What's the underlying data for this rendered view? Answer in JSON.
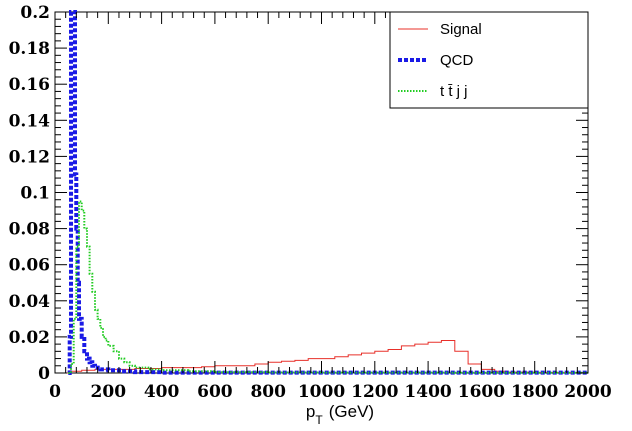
{
  "chart_data": {
    "type": "line",
    "xlabel": "p",
    "xlabel_sub": "T",
    "xlabel_unit": "(GeV)",
    "xlim": [
      0,
      2000
    ],
    "ylim": [
      0,
      0.2
    ],
    "x_ticks": [
      0,
      200,
      400,
      600,
      800,
      1000,
      1200,
      1400,
      1600,
      1800,
      2000
    ],
    "x_tick_labels": [
      "0",
      "200",
      "400",
      "600",
      "800",
      "1000",
      "1200",
      "1400",
      "1600",
      "1800",
      "2000"
    ],
    "y_ticks": [
      0,
      0.02,
      0.04,
      0.06,
      0.08,
      0.1,
      0.12,
      0.14,
      0.16,
      0.18,
      0.2
    ],
    "y_tick_labels": [
      "0",
      "0.02",
      "0.04",
      "0.06",
      "0.08",
      "0.1",
      "0.12",
      "0.14",
      "0.16",
      "0.18",
      "0.2"
    ],
    "grid": false,
    "legend_position": "top-right",
    "series": [
      {
        "name": "Signal",
        "color": "#e8302a",
        "style": "solid",
        "x": [
          0,
          50,
          100,
          150,
          200,
          250,
          300,
          350,
          400,
          450,
          500,
          550,
          600,
          650,
          700,
          750,
          800,
          850,
          900,
          950,
          1000,
          1050,
          1100,
          1150,
          1200,
          1250,
          1300,
          1350,
          1400,
          1450,
          1500,
          1550,
          1600,
          1650,
          1700,
          1800,
          1900,
          2000
        ],
        "y": [
          0,
          0.001,
          0.0015,
          0.002,
          0.002,
          0.002,
          0.0025,
          0.0025,
          0.003,
          0.003,
          0.003,
          0.0035,
          0.004,
          0.004,
          0.004,
          0.005,
          0.006,
          0.0065,
          0.007,
          0.008,
          0.008,
          0.009,
          0.01,
          0.011,
          0.012,
          0.013,
          0.015,
          0.016,
          0.017,
          0.018,
          0.012,
          0.005,
          0.002,
          0.001,
          0.0005,
          0.0003,
          0.0002,
          0
        ]
      },
      {
        "name": "QCD",
        "color": "#1a1ae6",
        "style": "dashed",
        "x": [
          50,
          55,
          60,
          65,
          70,
          75,
          80,
          85,
          90,
          100,
          110,
          120,
          130,
          140,
          150,
          170,
          200,
          250,
          300,
          400,
          2000
        ],
        "y": [
          0,
          0.02,
          0.2,
          0.2,
          0.2,
          0.11,
          0.08,
          0.05,
          0.03,
          0.02,
          0.012,
          0.008,
          0.006,
          0.004,
          0.003,
          0.002,
          0.0015,
          0.001,
          0.0005,
          0.0002,
          0
        ]
      },
      {
        "name": "t t̄ j j",
        "color": "#22cc22",
        "style": "dotted",
        "x": [
          50,
          60,
          70,
          80,
          90,
          100,
          110,
          120,
          130,
          140,
          150,
          160,
          170,
          180,
          190,
          200,
          220,
          240,
          260,
          280,
          300,
          350,
          400,
          500,
          600,
          800,
          1000,
          1500,
          2000
        ],
        "y": [
          0,
          0.005,
          0.03,
          0.07,
          0.095,
          0.09,
          0.08,
          0.07,
          0.055,
          0.045,
          0.035,
          0.03,
          0.025,
          0.02,
          0.018,
          0.015,
          0.012,
          0.008,
          0.006,
          0.004,
          0.003,
          0.002,
          0.0015,
          0.001,
          0.0005,
          0.0003,
          0.0002,
          0.0001,
          0
        ]
      }
    ]
  }
}
